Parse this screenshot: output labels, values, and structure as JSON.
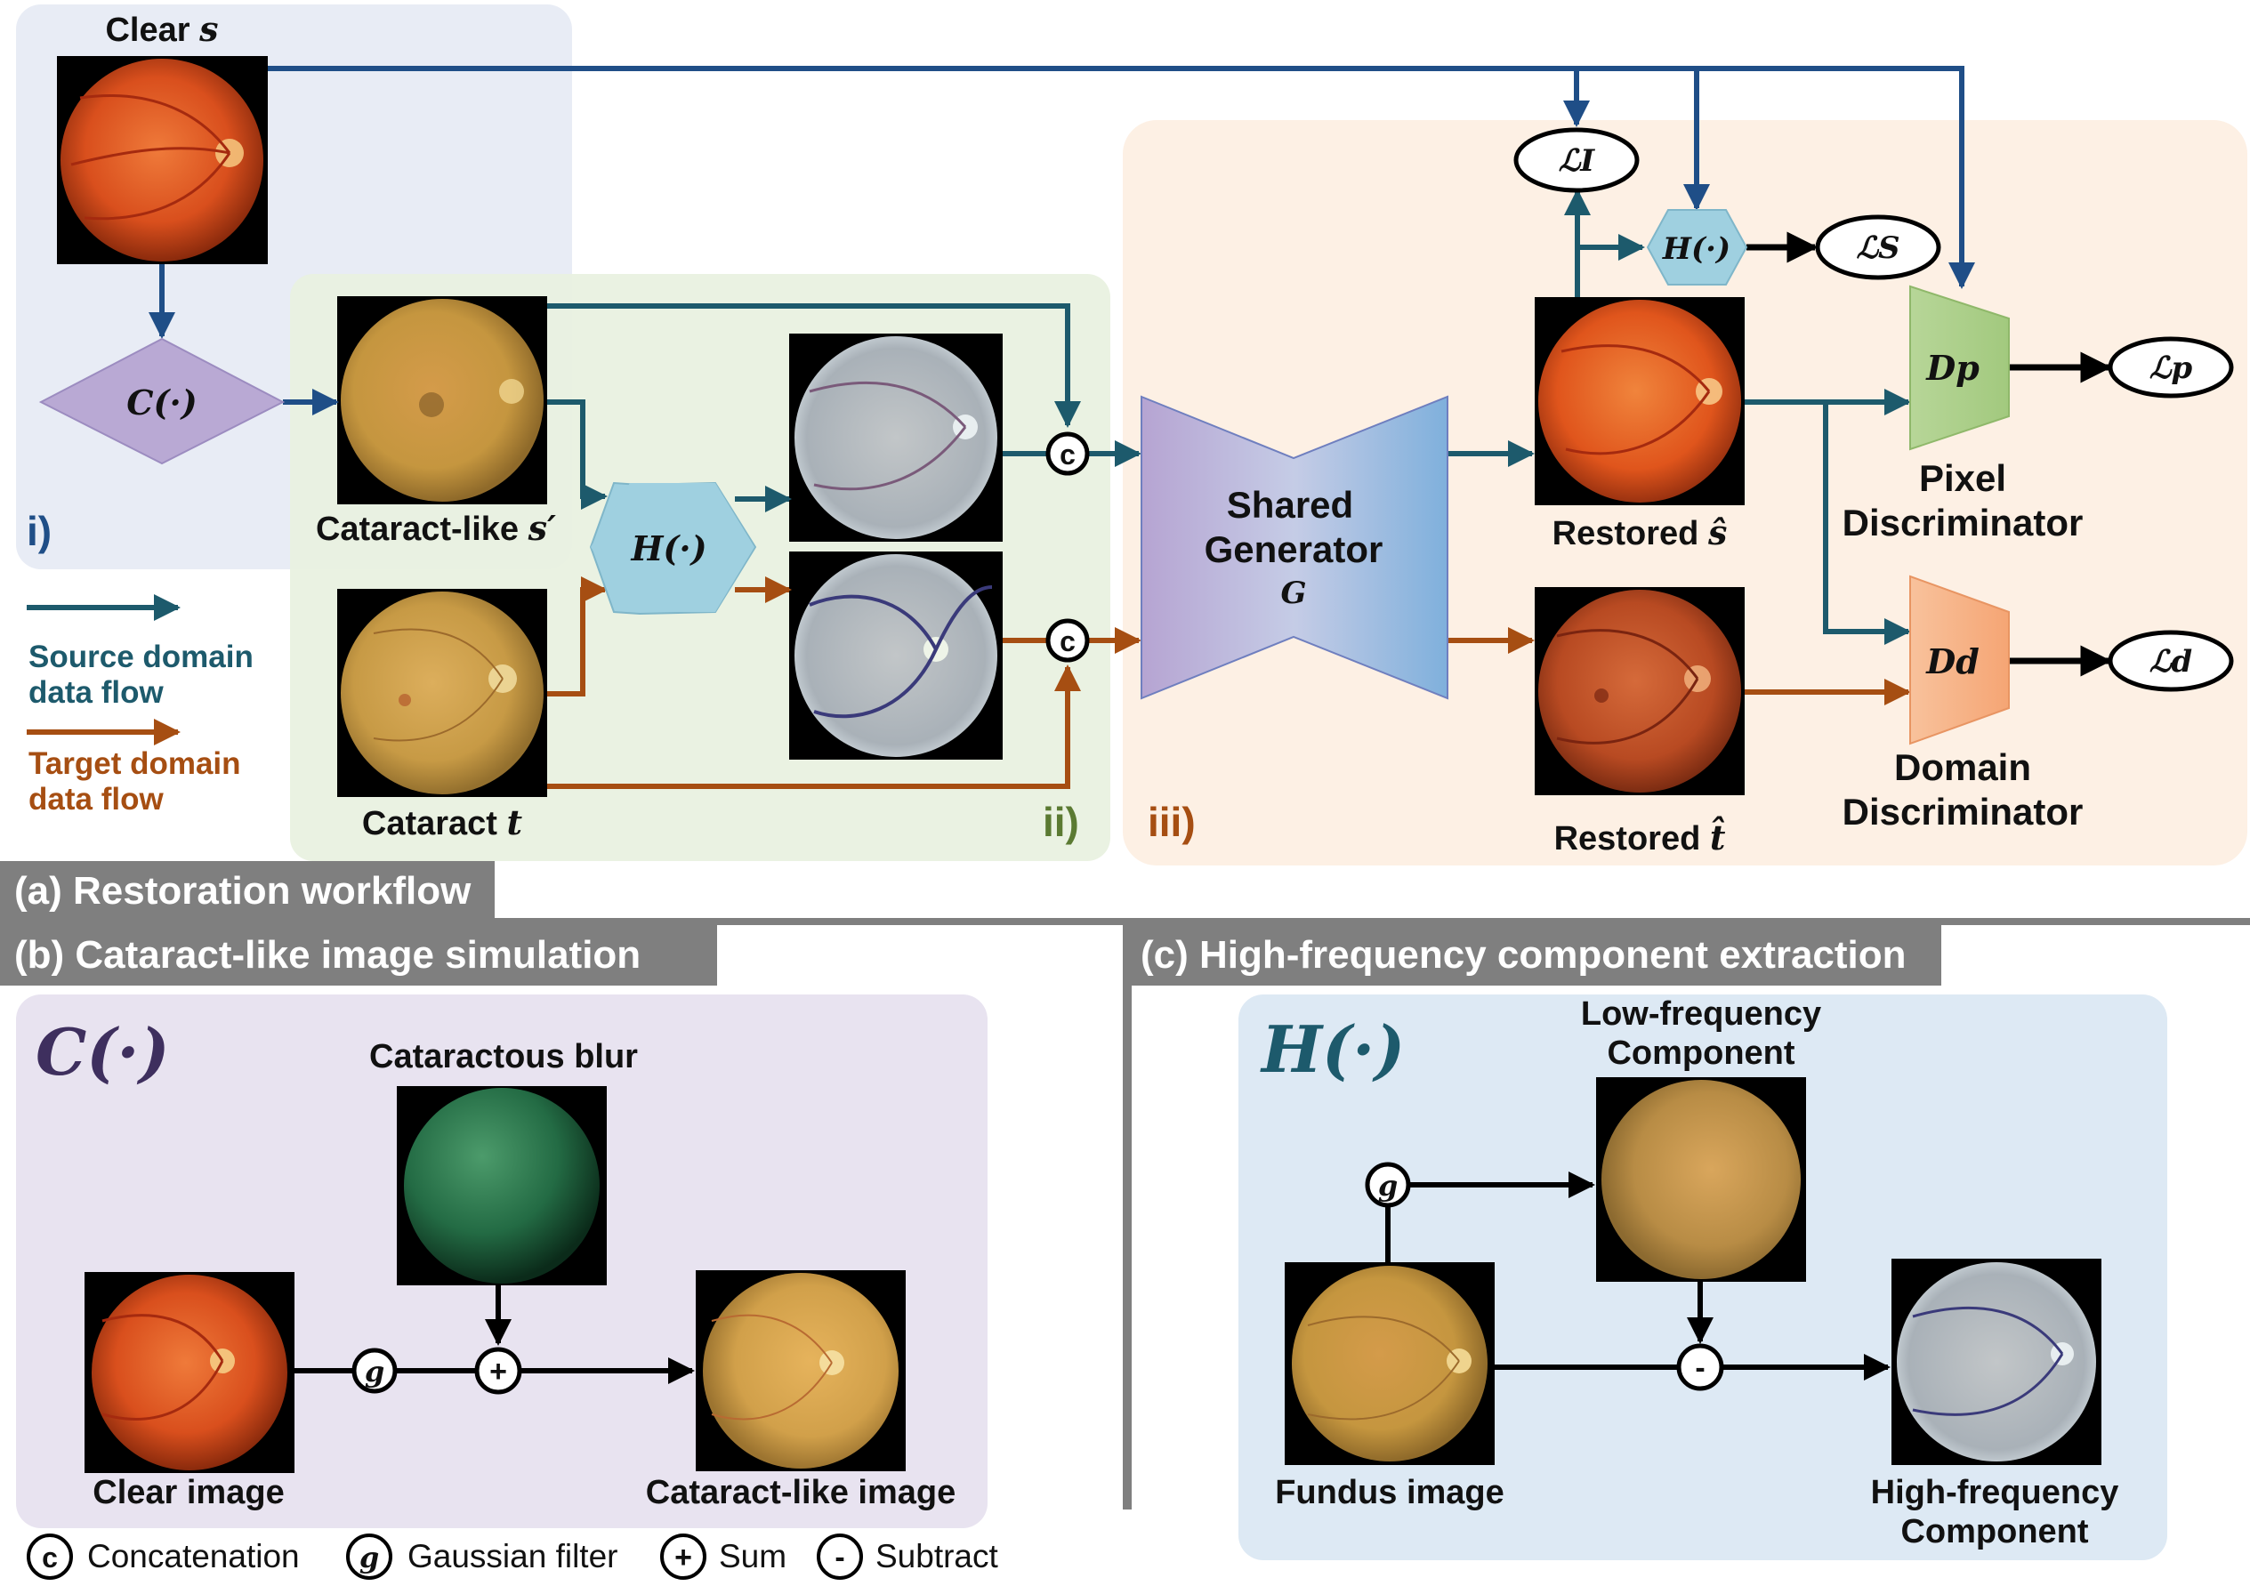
{
  "colors": {
    "source_flow": "#1d5a6c",
    "source_flow_dark": "#1f4e87",
    "target_flow": "#a64e12",
    "panel_i": "#e8ecf5",
    "panel_ii": "#e8f1e0",
    "panel_iii": "#fdf0e4",
    "panel_b": "#e8e3f0",
    "panel_c": "#dde9f4",
    "header_bar": "#7f7f7f"
  },
  "panel_a": {
    "header": "(a) Restoration workflow",
    "label_i": "i)",
    "label_ii": "ii)",
    "label_iii": "iii)",
    "clear_s": {
      "text": "Clear ",
      "sym": "s"
    },
    "cataract_like": {
      "text": "Cataract-like ",
      "sym": "s′"
    },
    "cataract_t": {
      "text": "Cataract ",
      "sym": "t"
    },
    "restored_s": {
      "text": "Restored ",
      "sym": "ŝ"
    },
    "restored_t": {
      "text": "Restored ",
      "sym": "t̂"
    },
    "c_op": "C(·)",
    "h_op": "H(·)",
    "h_op_small": "H(·)",
    "concat_symbol": "c",
    "generator": {
      "line1": "Shared",
      "line2": "Generator",
      "sym": "G"
    },
    "pixel_disc": {
      "sym": "Dp",
      "line1": "Pixel",
      "line2": "Discriminator"
    },
    "domain_disc": {
      "sym": "Dd",
      "line1": "Domain",
      "line2": "Discriminator"
    },
    "losses": {
      "l_i": "ℒI",
      "l_s": "ℒS",
      "l_p": "ℒp",
      "l_d": "ℒd"
    },
    "legend": {
      "source_line1": "Source domain",
      "source_line2": "data flow",
      "target_line1": "Target domain",
      "target_line2": "data flow"
    }
  },
  "panel_b": {
    "header": "(b) Cataract-like image simulation",
    "op_title": "C(·)",
    "cataractous_blur": "Cataractous blur",
    "clear_image": "Clear image",
    "cataract_like_image": "Cataract-like image",
    "g_symbol": "g",
    "plus_symbol": "+"
  },
  "panel_c": {
    "header": "(c) High-frequency component extraction",
    "op_title": "H(·)",
    "low_freq_line1": "Low-frequency",
    "low_freq_line2": "Component",
    "fundus_image": "Fundus image",
    "high_freq_line1": "High-frequency",
    "high_freq_line2": "Component",
    "g_symbol": "g",
    "minus_symbol": "-"
  },
  "legend_bottom": {
    "concat": {
      "symbol": "c",
      "label": "Concatenation"
    },
    "gaussian": {
      "symbol": "g",
      "label": "Gaussian filter"
    },
    "sum": {
      "symbol": "+",
      "label": "Sum"
    },
    "subtract": {
      "symbol": "-",
      "label": "Subtract"
    }
  }
}
